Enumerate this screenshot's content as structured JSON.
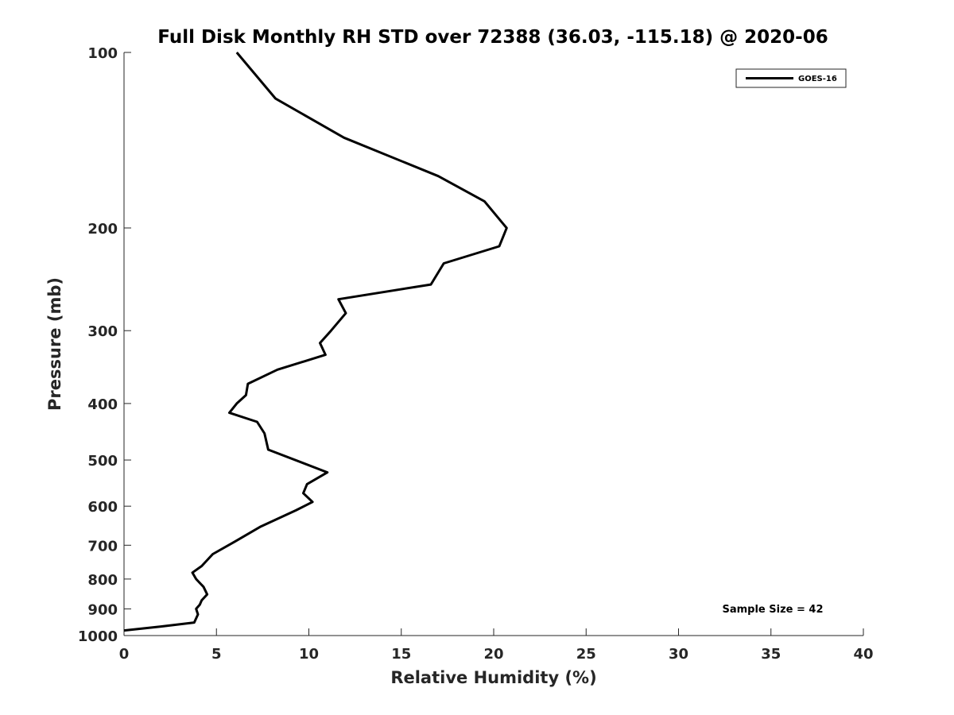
{
  "chart_data": {
    "type": "line",
    "title": "Full Disk Monthly RH STD over 72388 (36.03, -115.18) @ 2020-06",
    "xlabel": "Relative Humidity (%)",
    "ylabel": "Pressure (mb)",
    "xlim": [
      0,
      40
    ],
    "ylim": [
      100,
      1000
    ],
    "y_scale": "log",
    "y_reversed": true,
    "x_ticks": [
      0,
      5,
      10,
      15,
      20,
      25,
      30,
      35,
      40
    ],
    "x_tick_labels": [
      "0",
      "5",
      "10",
      "15",
      "20",
      "25",
      "30",
      "35",
      "40"
    ],
    "y_ticks": [
      100,
      200,
      300,
      400,
      500,
      600,
      700,
      800,
      900,
      1000
    ],
    "y_tick_labels": [
      "100",
      "200",
      "300",
      "400",
      "500",
      "600",
      "700",
      "800",
      "900",
      "1000"
    ],
    "grid": false,
    "legend_position": "top-right",
    "series": [
      {
        "name": "GOES-16",
        "color": "#000000",
        "points": [
          [
            6.1,
            100
          ],
          [
            8.2,
            120
          ],
          [
            11.9,
            140
          ],
          [
            17.0,
            163
          ],
          [
            19.5,
            180
          ],
          [
            20.7,
            200
          ],
          [
            20.3,
            215
          ],
          [
            17.3,
            230
          ],
          [
            16.6,
            250
          ],
          [
            11.6,
            265
          ],
          [
            12.0,
            280
          ],
          [
            11.2,
            300
          ],
          [
            10.6,
            315
          ],
          [
            10.9,
            330
          ],
          [
            8.3,
            350
          ],
          [
            6.7,
            370
          ],
          [
            6.6,
            387
          ],
          [
            6.1,
            400
          ],
          [
            5.7,
            415
          ],
          [
            7.2,
            430
          ],
          [
            7.6,
            450
          ],
          [
            7.8,
            480
          ],
          [
            11.0,
            525
          ],
          [
            9.9,
            550
          ],
          [
            9.7,
            570
          ],
          [
            10.2,
            590
          ],
          [
            9.3,
            610
          ],
          [
            7.4,
            650
          ],
          [
            6.0,
            690
          ],
          [
            4.8,
            725
          ],
          [
            4.2,
            760
          ],
          [
            3.7,
            780
          ],
          [
            3.9,
            800
          ],
          [
            4.3,
            825
          ],
          [
            4.5,
            850
          ],
          [
            4.2,
            870
          ],
          [
            4.1,
            885
          ],
          [
            3.9,
            900
          ],
          [
            4.0,
            920
          ],
          [
            3.8,
            950
          ],
          [
            2.0,
            965
          ],
          [
            0.0,
            980
          ]
        ]
      }
    ],
    "annotation": "Sample Size = 42"
  }
}
